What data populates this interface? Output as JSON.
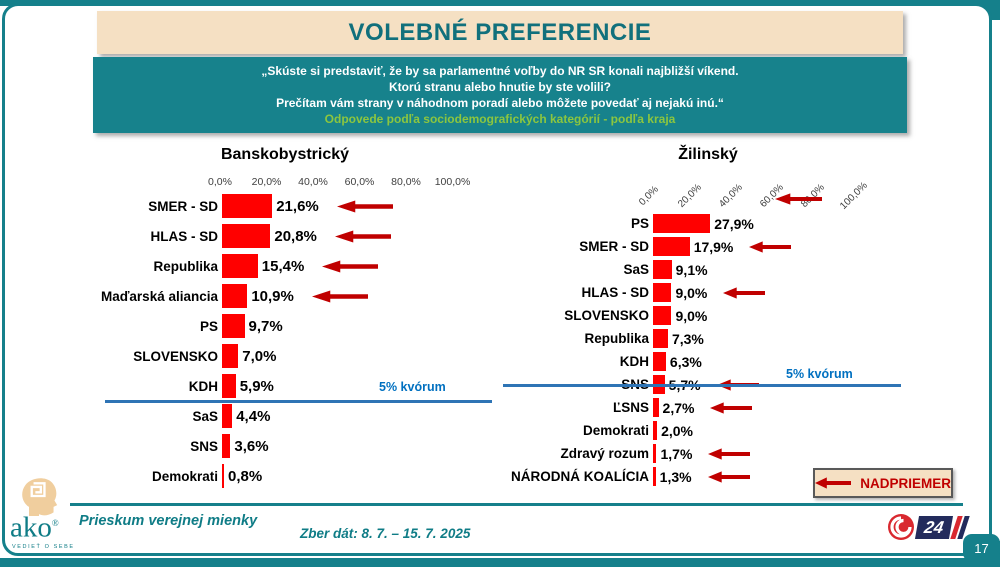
{
  "slide": {
    "title": "VOLEBNÉ PREFERENCIE",
    "question_lines": [
      "„Skúste si predstaviť, že by sa parlamentné voľby do NR SR konali najbližší víkend.",
      "Ktorú stranu alebo hnutie by ste volili?",
      "Prečítam vám strany v náhodnom poradí alebo môžete povedať aj nejakú inú.“"
    ],
    "question_highlight": "Odpovede podľa sociodemografických kategórií - podľa kraja",
    "page_number": "17"
  },
  "legend": {
    "nadpriemer_label": "NADPRIEMER"
  },
  "footer": {
    "logo_text": "ako",
    "logo_reg": "®",
    "logo_tagline": "VEDIEŤ O SEBE",
    "survey_type": "Prieskum verejnej mienky",
    "collection_dates": "Zber dát: 8. 7. – 15. 7. 2025",
    "tv_channel": "24"
  },
  "colors": {
    "accent_teal": "#15808B",
    "cream": "#F5E0C3",
    "bar_red": "#FF0000",
    "arrow_dark_red": "#C00000",
    "quorum_blue": "#2E74B5",
    "quorum_text_blue": "#0070C0",
    "highlight_green": "#8CC63F"
  },
  "chart_data": [
    {
      "type": "bar",
      "orientation": "horizontal",
      "title": "Banskobystrický",
      "xlim": [
        0,
        100
      ],
      "x_ticks": [
        "0,0%",
        "20,0%",
        "40,0%",
        "60,0%",
        "80,0%",
        "100,0%"
      ],
      "quorum": {
        "value": 5,
        "label": "5% kvórum"
      },
      "categories": [
        "SMER - SD",
        "HLAS - SD",
        "Republika",
        "Maďarská aliancia",
        "PS",
        "SLOVENSKO",
        "KDH",
        "SaS",
        "SNS",
        "Demokrati"
      ],
      "values": [
        21.6,
        20.8,
        15.4,
        10.9,
        9.7,
        7.0,
        5.9,
        4.4,
        3.6,
        0.8
      ],
      "value_labels": [
        "21,6%",
        "20,8%",
        "15,4%",
        "10,9%",
        "9,7%",
        "7,0%",
        "5,9%",
        "4,4%",
        "3,6%",
        "0,8%"
      ],
      "above_average": [
        true,
        true,
        true,
        true,
        false,
        false,
        false,
        false,
        false,
        false
      ]
    },
    {
      "type": "bar",
      "orientation": "horizontal",
      "title": "Žilinský",
      "xlim": [
        0,
        100
      ],
      "x_ticks": [
        "0,0%",
        "20,0%",
        "40,0%",
        "60,0%",
        "80,0%",
        "100,0%"
      ],
      "quorum": {
        "value": 5,
        "label": "5% kvórum"
      },
      "categories": [
        "PS",
        "SMER - SD",
        "SaS",
        "HLAS - SD",
        "SLOVENSKO",
        "Republika",
        "KDH",
        "SNS",
        "ĽSNS",
        "Demokrati",
        "Zdravý rozum",
        "NÁRODNÁ KOALÍCIA"
      ],
      "values": [
        27.9,
        17.9,
        9.1,
        9.0,
        9.0,
        7.3,
        6.3,
        5.7,
        2.7,
        2.0,
        1.7,
        1.3
      ],
      "value_labels": [
        "27,9%",
        "17,9%",
        "9,1%",
        "9,0%",
        "9,0%",
        "7,3%",
        "6,3%",
        "5,7%",
        "2,7%",
        "2,0%",
        "1,7%",
        "1,3%"
      ],
      "above_average": [
        true,
        true,
        false,
        true,
        false,
        false,
        false,
        true,
        true,
        false,
        true,
        true
      ],
      "arrow_at_axis_for": "PS"
    }
  ]
}
